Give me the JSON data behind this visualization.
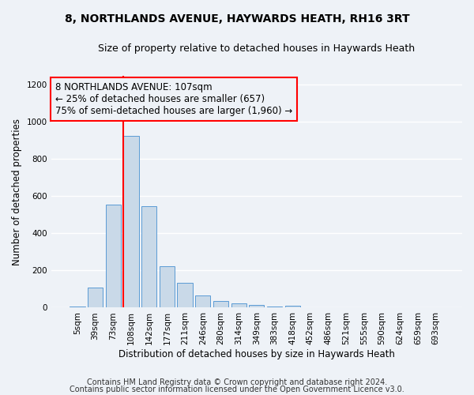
{
  "title": "8, NORTHLANDS AVENUE, HAYWARDS HEATH, RH16 3RT",
  "subtitle": "Size of property relative to detached houses in Haywards Heath",
  "xlabel": "Distribution of detached houses by size in Haywards Heath",
  "ylabel": "Number of detached properties",
  "bar_labels": [
    "5sqm",
    "39sqm",
    "73sqm",
    "108sqm",
    "142sqm",
    "177sqm",
    "211sqm",
    "246sqm",
    "280sqm",
    "314sqm",
    "349sqm",
    "383sqm",
    "418sqm",
    "452sqm",
    "486sqm",
    "521sqm",
    "555sqm",
    "590sqm",
    "624sqm",
    "659sqm",
    "693sqm"
  ],
  "bar_values": [
    8,
    110,
    555,
    925,
    545,
    225,
    135,
    65,
    37,
    22,
    15,
    7,
    10,
    0,
    0,
    0,
    0,
    0,
    0,
    0,
    0
  ],
  "bar_color": "#c9d9e8",
  "bar_edge_color": "#5b9bd5",
  "vline_index": 3,
  "vline_color": "red",
  "annotation_text": "8 NORTHLANDS AVENUE: 107sqm\n← 25% of detached houses are smaller (657)\n75% of semi-detached houses are larger (1,960) →",
  "annotation_box_color": "red",
  "ylim": [
    0,
    1250
  ],
  "yticks": [
    0,
    200,
    400,
    600,
    800,
    1000,
    1200
  ],
  "footer_line1": "Contains HM Land Registry data © Crown copyright and database right 2024.",
  "footer_line2": "Contains public sector information licensed under the Open Government Licence v3.0.",
  "background_color": "#eef2f7",
  "grid_color": "white",
  "title_fontsize": 10,
  "subtitle_fontsize": 9,
  "axis_label_fontsize": 8.5,
  "tick_fontsize": 7.5,
  "annotation_fontsize": 8.5,
  "footer_fontsize": 7
}
